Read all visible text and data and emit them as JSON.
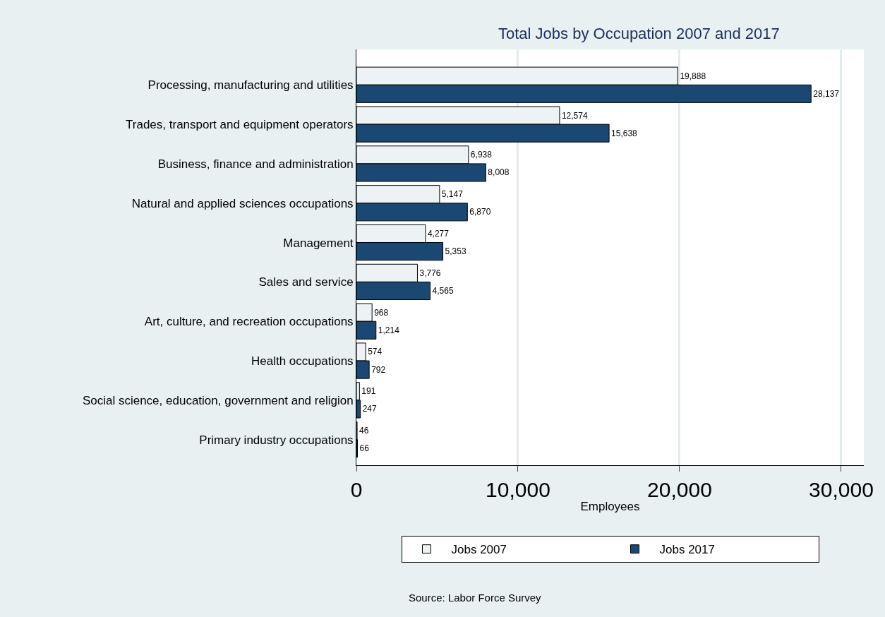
{
  "chart_data": {
    "type": "bar",
    "orientation": "horizontal",
    "title": "Total Jobs by Occupation 2007 and 2017",
    "xlabel": "Employees",
    "categories": [
      "Processing, manufacturing and utilities",
      "Trades, transport and equipment operators",
      "Business, finance and administration",
      "Natural and applied sciences occupations",
      "Management",
      "Sales and service",
      "Art, culture, and recreation occupations",
      "Health occupations",
      "Social science, education, government and religion",
      "Primary industry occupations"
    ],
    "series": [
      {
        "name": "Jobs 2007",
        "color": "#edf2f4",
        "values": [
          19888,
          12574,
          6938,
          5147,
          4277,
          3776,
          968,
          574,
          191,
          46
        ],
        "value_labels": [
          "19,888",
          "12,574",
          "6,938",
          "5,147",
          "4,277",
          "3,776",
          "968",
          "574",
          "191",
          "46"
        ]
      },
      {
        "name": "Jobs 2017",
        "color": "#1a4873",
        "values": [
          28137,
          15638,
          8008,
          6870,
          5353,
          4565,
          1214,
          792,
          247,
          66
        ],
        "value_labels": [
          "28,137",
          "15,638",
          "8,008",
          "6,870",
          "5,353",
          "4,565",
          "1,214",
          "792",
          "247",
          "66"
        ]
      }
    ],
    "xlim": [
      0,
      31400
    ],
    "xticks": [
      {
        "value": 0,
        "label": "0"
      },
      {
        "value": 10000,
        "label": "10,000"
      },
      {
        "value": 20000,
        "label": "20,000"
      },
      {
        "value": 30000,
        "label": "30,000"
      }
    ],
    "grid": "x",
    "legend": "bottom",
    "annotations": [
      "Source: Labor Force Survey"
    ]
  }
}
